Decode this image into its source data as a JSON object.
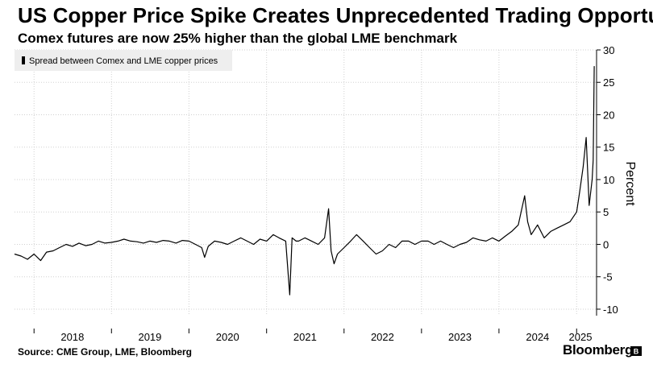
{
  "header": {
    "title": "US Copper Price Spike Creates Unprecedented Trading Opportu",
    "subtitle": "Comex futures are now 25% higher than the global LME benchmark"
  },
  "footer": {
    "source": "Source: CME Group, LME, Bloomberg",
    "brand": "Bloomberg"
  },
  "colors": {
    "line": "#000000",
    "grid": "#d0d0d0",
    "legend_bg": "#eeeeee"
  },
  "chart_data": {
    "type": "line",
    "title": "",
    "xlabel": "",
    "ylabel": "Percent",
    "ylim": [
      -11,
      30
    ],
    "yticks": [
      -10,
      -5,
      0,
      5,
      10,
      15,
      20,
      25,
      30
    ],
    "xlim": [
      "2017-10-01",
      "2025-04-05"
    ],
    "xticks": [
      "2018",
      "2019",
      "2020",
      "2021",
      "2022",
      "2023",
      "2024",
      "2025"
    ],
    "grid": true,
    "legend": "top-left",
    "series": [
      {
        "name": "Spread between Comex and LME copper prices",
        "x": [
          "2017-10-01",
          "2017-11-01",
          "2017-12-01",
          "2018-01-01",
          "2018-02-01",
          "2018-03-01",
          "2018-04-01",
          "2018-05-01",
          "2018-06-01",
          "2018-07-01",
          "2018-08-01",
          "2018-09-01",
          "2018-10-01",
          "2018-11-01",
          "2018-12-01",
          "2019-01-01",
          "2019-02-01",
          "2019-03-01",
          "2019-04-01",
          "2019-05-01",
          "2019-06-01",
          "2019-07-01",
          "2019-08-01",
          "2019-09-01",
          "2019-10-01",
          "2019-11-01",
          "2019-12-01",
          "2020-01-01",
          "2020-02-01",
          "2020-03-01",
          "2020-03-15",
          "2020-04-01",
          "2020-05-01",
          "2020-06-01",
          "2020-07-01",
          "2020-08-01",
          "2020-09-01",
          "2020-10-01",
          "2020-11-01",
          "2020-12-01",
          "2021-01-01",
          "2021-02-01",
          "2021-03-01",
          "2021-04-01",
          "2021-04-20",
          "2021-05-01",
          "2021-05-20",
          "2021-06-01",
          "2021-07-01",
          "2021-08-01",
          "2021-09-01",
          "2021-10-01",
          "2021-10-20",
          "2021-11-01",
          "2021-11-15",
          "2021-12-01",
          "2022-01-01",
          "2022-02-01",
          "2022-03-01",
          "2022-04-01",
          "2022-05-01",
          "2022-06-01",
          "2022-07-01",
          "2022-08-01",
          "2022-09-01",
          "2022-10-01",
          "2022-11-01",
          "2022-12-01",
          "2023-01-01",
          "2023-02-01",
          "2023-03-01",
          "2023-04-01",
          "2023-05-01",
          "2023-06-01",
          "2023-07-01",
          "2023-08-01",
          "2023-09-01",
          "2023-10-01",
          "2023-11-01",
          "2023-12-01",
          "2024-01-01",
          "2024-02-01",
          "2024-03-01",
          "2024-04-01",
          "2024-05-01",
          "2024-05-15",
          "2024-06-01",
          "2024-07-01",
          "2024-08-01",
          "2024-09-01",
          "2024-10-01",
          "2024-11-01",
          "2024-12-01",
          "2025-01-01",
          "2025-01-15",
          "2025-02-01",
          "2025-02-15",
          "2025-03-01",
          "2025-03-15",
          "2025-03-20",
          "2025-03-25"
        ],
        "values": [
          -1.5,
          -1.8,
          -2.3,
          -1.5,
          -2.5,
          -1.2,
          -1.0,
          -0.5,
          0.0,
          -0.3,
          0.2,
          -0.2,
          0.0,
          0.5,
          0.2,
          0.3,
          0.5,
          0.8,
          0.5,
          0.4,
          0.2,
          0.5,
          0.3,
          0.6,
          0.5,
          0.2,
          0.6,
          0.5,
          0.0,
          -0.5,
          -2.0,
          -0.3,
          0.5,
          0.3,
          0.0,
          0.5,
          1.0,
          0.5,
          0.0,
          0.8,
          0.5,
          1.5,
          1.0,
          0.5,
          -7.8,
          1.0,
          0.5,
          0.5,
          1.0,
          0.5,
          0.0,
          1.0,
          5.5,
          -1.0,
          -3.0,
          -1.5,
          -0.5,
          0.5,
          1.5,
          0.5,
          -0.5,
          -1.5,
          -1.0,
          0.0,
          -0.5,
          0.5,
          0.5,
          0.0,
          0.5,
          0.5,
          0.0,
          0.5,
          0.0,
          -0.5,
          0.0,
          0.3,
          1.0,
          0.7,
          0.5,
          1.0,
          0.5,
          1.3,
          2.0,
          3.0,
          7.5,
          3.5,
          1.5,
          3.0,
          1.0,
          2.0,
          2.5,
          3.0,
          3.5,
          5.0,
          8.0,
          12.0,
          16.5,
          6.0,
          10.0,
          13.0,
          27.5
        ]
      }
    ]
  }
}
